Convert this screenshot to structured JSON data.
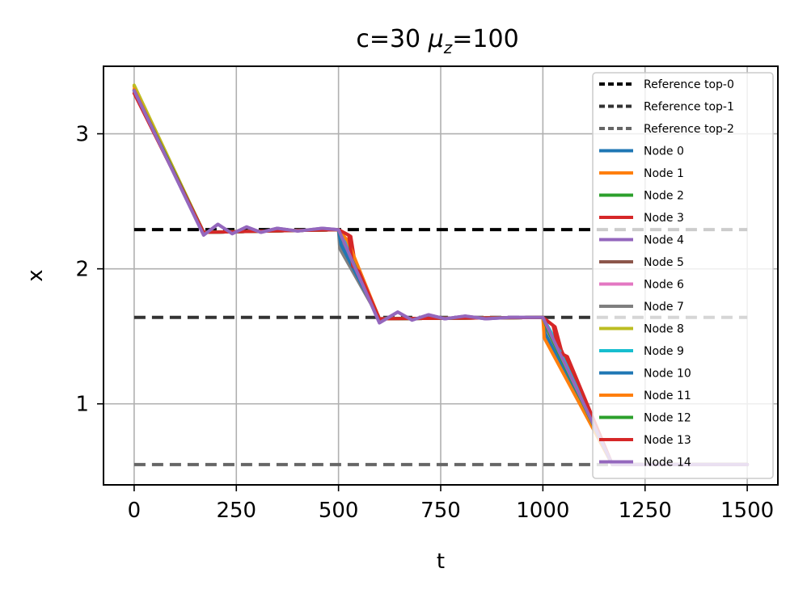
{
  "chart_data": {
    "type": "line",
    "title_main": "c=30 ",
    "title_mu": "μ",
    "title_sub": "z",
    "title_rest": "=100",
    "xlabel": "t",
    "ylabel": "x",
    "xlim": [
      -75,
      1575
    ],
    "ylim": [
      0.4,
      3.5
    ],
    "xticks": [
      0,
      250,
      500,
      750,
      1000,
      1250,
      1500
    ],
    "yticks": [
      1,
      2,
      3
    ],
    "xtick_labels": [
      "0",
      "250",
      "500",
      "750",
      "1000",
      "1250",
      "1500"
    ],
    "ytick_labels": [
      "1",
      "2",
      "3"
    ],
    "grid": true,
    "legend_position": "top-right",
    "references": [
      {
        "name": "Reference top-0",
        "value": 2.29,
        "color": "#000000"
      },
      {
        "name": "Reference top-1",
        "value": 1.64,
        "color": "#333333"
      },
      {
        "name": "Reference top-2",
        "value": 0.55,
        "color": "#666666"
      }
    ],
    "series": [
      {
        "name": "Node 0",
        "color": "#1f77b4",
        "points": [
          [
            0,
            3.32
          ],
          [
            170,
            2.27
          ],
          [
            500,
            2.29
          ],
          [
            505,
            2.18
          ],
          [
            600,
            1.63
          ],
          [
            1000,
            1.64
          ],
          [
            1010,
            1.52
          ],
          [
            1170,
            0.55
          ],
          [
            1500,
            0.55
          ]
        ]
      },
      {
        "name": "Node 1",
        "color": "#ff7f0e",
        "points": [
          [
            0,
            3.35
          ],
          [
            170,
            2.27
          ],
          [
            500,
            2.29
          ],
          [
            520,
            2.2
          ],
          [
            600,
            1.63
          ],
          [
            1000,
            1.64
          ],
          [
            1005,
            1.5
          ],
          [
            1170,
            0.55
          ],
          [
            1500,
            0.55
          ]
        ]
      },
      {
        "name": "Node 2",
        "color": "#2ca02c",
        "points": [
          [
            0,
            3.32
          ],
          [
            170,
            2.27
          ],
          [
            500,
            2.29
          ],
          [
            510,
            2.18
          ],
          [
            600,
            1.63
          ],
          [
            1000,
            1.64
          ],
          [
            1015,
            1.52
          ],
          [
            1170,
            0.55
          ],
          [
            1500,
            0.55
          ]
        ]
      },
      {
        "name": "Node 3",
        "color": "#d62728",
        "points": [
          [
            0,
            3.3
          ],
          [
            170,
            2.27
          ],
          [
            500,
            2.29
          ],
          [
            530,
            2.24
          ],
          [
            540,
            2.05
          ],
          [
            600,
            1.63
          ],
          [
            1000,
            1.64
          ],
          [
            1030,
            1.57
          ],
          [
            1045,
            1.4
          ],
          [
            1170,
            0.55
          ],
          [
            1500,
            0.55
          ]
        ]
      },
      {
        "name": "Node 4",
        "color": "#9467bd",
        "points": [
          [
            0,
            3.32
          ],
          [
            170,
            2.25
          ],
          [
            205,
            2.33
          ],
          [
            240,
            2.26
          ],
          [
            275,
            2.31
          ],
          [
            310,
            2.27
          ],
          [
            350,
            2.3
          ],
          [
            400,
            2.28
          ],
          [
            460,
            2.3
          ],
          [
            500,
            2.29
          ],
          [
            600,
            1.6
          ],
          [
            645,
            1.68
          ],
          [
            680,
            1.62
          ],
          [
            720,
            1.66
          ],
          [
            760,
            1.63
          ],
          [
            810,
            1.65
          ],
          [
            860,
            1.63
          ],
          [
            920,
            1.64
          ],
          [
            1000,
            1.64
          ],
          [
            1170,
            0.55
          ],
          [
            1500,
            0.55
          ]
        ]
      },
      {
        "name": "Node 5",
        "color": "#8c564b",
        "points": [
          [
            0,
            3.32
          ],
          [
            170,
            2.27
          ],
          [
            500,
            2.29
          ],
          [
            508,
            2.19
          ],
          [
            600,
            1.63
          ],
          [
            1000,
            1.64
          ],
          [
            1008,
            1.53
          ],
          [
            1170,
            0.55
          ],
          [
            1500,
            0.55
          ]
        ]
      },
      {
        "name": "Node 6",
        "color": "#e377c2",
        "points": [
          [
            0,
            3.32
          ],
          [
            170,
            2.27
          ],
          [
            500,
            2.29
          ],
          [
            512,
            2.2
          ],
          [
            600,
            1.63
          ],
          [
            1000,
            1.64
          ],
          [
            1012,
            1.53
          ],
          [
            1170,
            0.55
          ],
          [
            1500,
            0.55
          ]
        ]
      },
      {
        "name": "Node 7",
        "color": "#7f7f7f",
        "points": [
          [
            0,
            3.32
          ],
          [
            170,
            2.27
          ],
          [
            500,
            2.29
          ],
          [
            503,
            2.15
          ],
          [
            600,
            1.63
          ],
          [
            1000,
            1.64
          ],
          [
            1004,
            1.52
          ],
          [
            1170,
            0.55
          ],
          [
            1500,
            0.55
          ]
        ]
      },
      {
        "name": "Node 8",
        "color": "#bcbd22",
        "points": [
          [
            0,
            3.36
          ],
          [
            170,
            2.27
          ],
          [
            500,
            2.29
          ],
          [
            515,
            2.2
          ],
          [
            600,
            1.63
          ],
          [
            1000,
            1.64
          ],
          [
            1018,
            1.53
          ],
          [
            1170,
            0.55
          ],
          [
            1500,
            0.55
          ]
        ]
      },
      {
        "name": "Node 9",
        "color": "#17becf",
        "points": [
          [
            0,
            3.32
          ],
          [
            170,
            2.27
          ],
          [
            500,
            2.29
          ],
          [
            518,
            2.2
          ],
          [
            600,
            1.63
          ],
          [
            1000,
            1.64
          ],
          [
            1020,
            1.53
          ],
          [
            1170,
            0.55
          ],
          [
            1500,
            0.55
          ]
        ]
      },
      {
        "name": "Node 10",
        "color": "#1f77b4",
        "points": [
          [
            0,
            3.32
          ],
          [
            170,
            2.27
          ],
          [
            500,
            2.29
          ],
          [
            506,
            2.18
          ],
          [
            600,
            1.63
          ],
          [
            1000,
            1.64
          ],
          [
            1006,
            1.52
          ],
          [
            1170,
            0.55
          ],
          [
            1500,
            0.55
          ]
        ]
      },
      {
        "name": "Node 11",
        "color": "#ff7f0e",
        "points": [
          [
            0,
            3.33
          ],
          [
            170,
            2.27
          ],
          [
            500,
            2.29
          ],
          [
            522,
            2.21
          ],
          [
            600,
            1.63
          ],
          [
            1000,
            1.64
          ],
          [
            1003,
            1.49
          ],
          [
            1170,
            0.55
          ],
          [
            1500,
            0.55
          ]
        ]
      },
      {
        "name": "Node 12",
        "color": "#2ca02c",
        "points": [
          [
            0,
            3.32
          ],
          [
            170,
            2.27
          ],
          [
            500,
            2.29
          ],
          [
            514,
            2.19
          ],
          [
            600,
            1.63
          ],
          [
            1000,
            1.64
          ],
          [
            1016,
            1.52
          ],
          [
            1170,
            0.55
          ],
          [
            1500,
            0.55
          ]
        ]
      },
      {
        "name": "Node 13",
        "color": "#d62728",
        "points": [
          [
            0,
            3.3
          ],
          [
            170,
            2.27
          ],
          [
            500,
            2.29
          ],
          [
            525,
            2.25
          ],
          [
            535,
            2.02
          ],
          [
            550,
            1.98
          ],
          [
            600,
            1.63
          ],
          [
            1000,
            1.64
          ],
          [
            1025,
            1.58
          ],
          [
            1040,
            1.38
          ],
          [
            1060,
            1.35
          ],
          [
            1170,
            0.55
          ],
          [
            1500,
            0.55
          ]
        ]
      },
      {
        "name": "Node 14",
        "color": "#9467bd",
        "points": [
          [
            0,
            3.32
          ],
          [
            170,
            2.25
          ],
          [
            205,
            2.33
          ],
          [
            240,
            2.26
          ],
          [
            275,
            2.31
          ],
          [
            310,
            2.27
          ],
          [
            350,
            2.3
          ],
          [
            400,
            2.28
          ],
          [
            460,
            2.3
          ],
          [
            500,
            2.29
          ],
          [
            600,
            1.6
          ],
          [
            645,
            1.68
          ],
          [
            680,
            1.62
          ],
          [
            720,
            1.66
          ],
          [
            760,
            1.63
          ],
          [
            810,
            1.65
          ],
          [
            860,
            1.63
          ],
          [
            920,
            1.64
          ],
          [
            1000,
            1.64
          ],
          [
            1170,
            0.55
          ],
          [
            1500,
            0.55
          ]
        ]
      }
    ]
  }
}
